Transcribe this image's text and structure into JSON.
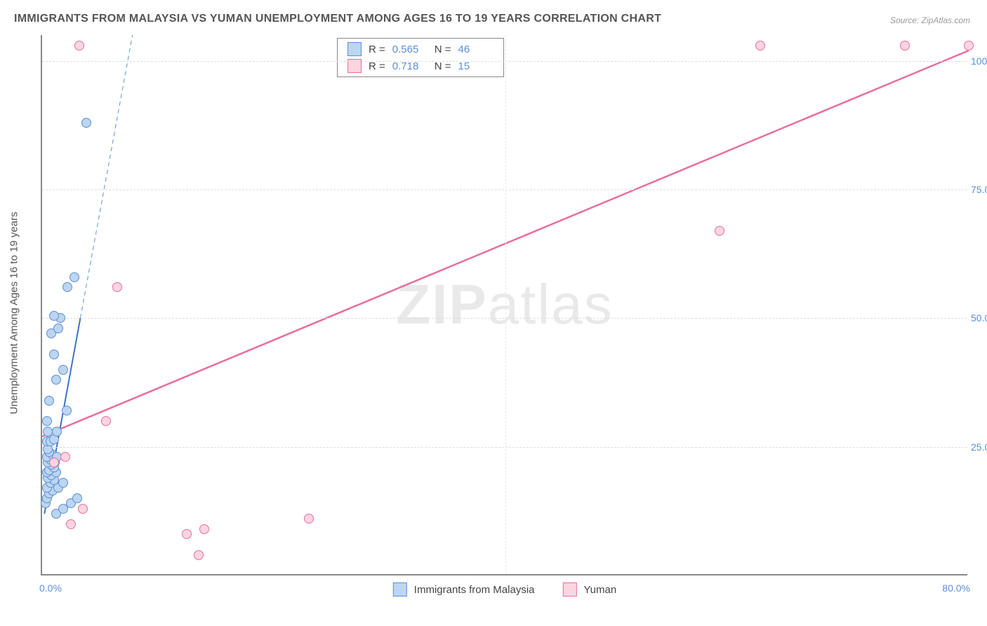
{
  "title": "IMMIGRANTS FROM MALAYSIA VS YUMAN UNEMPLOYMENT AMONG AGES 16 TO 19 YEARS CORRELATION CHART",
  "source": "Source: ZipAtlas.com",
  "y_axis_label": "Unemployment Among Ages 16 to 19 years",
  "watermark_a": "ZIP",
  "watermark_b": "atlas",
  "chart": {
    "type": "scatter",
    "background_color": "#ffffff",
    "grid_color": "#dddddd",
    "axis_color": "#888888",
    "xlim": [
      0,
      80
    ],
    "ylim": [
      0,
      105
    ],
    "x_ticks": [
      0,
      40,
      80
    ],
    "x_tick_labels": [
      "0.0%",
      "",
      "80.0%"
    ],
    "y_ticks": [
      25,
      50,
      75,
      100
    ],
    "y_tick_labels": [
      "25.0%",
      "50.0%",
      "75.0%",
      "100.0%"
    ],
    "x_grid_positions": [
      40
    ],
    "point_radius": 7,
    "point_stroke_width": 1.5,
    "series": [
      {
        "id": "malaysia",
        "label": "Immigrants from Malaysia",
        "fill": "#bcd5f0",
        "stroke": "#5b8fd6",
        "R": "0.565",
        "N": "46",
        "trend": {
          "x1": 0.2,
          "y1": 12,
          "x2": 3.3,
          "y2": 50,
          "color": "#3f73c4",
          "width": 2
        },
        "trend_ext": {
          "x1": 3.3,
          "y1": 50,
          "x2": 7.8,
          "y2": 105,
          "color": "#5b8fd6",
          "dash": "6 5",
          "width": 1
        },
        "points": [
          [
            0.3,
            14
          ],
          [
            0.4,
            15
          ],
          [
            0.6,
            16
          ],
          [
            0.9,
            16.5
          ],
          [
            0.4,
            17
          ],
          [
            1.4,
            17
          ],
          [
            0.7,
            18
          ],
          [
            1.0,
            18.5
          ],
          [
            1.8,
            18
          ],
          [
            0.5,
            19
          ],
          [
            0.8,
            19.5
          ],
          [
            1.2,
            20
          ],
          [
            0.4,
            20
          ],
          [
            0.6,
            20.5
          ],
          [
            1.0,
            21
          ],
          [
            0.8,
            21.5
          ],
          [
            0.5,
            22
          ],
          [
            1.1,
            22
          ],
          [
            0.7,
            22.5
          ],
          [
            0.4,
            23
          ],
          [
            0.9,
            23.5
          ],
          [
            1.3,
            23
          ],
          [
            0.6,
            24
          ],
          [
            0.5,
            24.5
          ],
          [
            0.4,
            26
          ],
          [
            0.7,
            26
          ],
          [
            1.0,
            26.5
          ],
          [
            0.5,
            28
          ],
          [
            1.3,
            28
          ],
          [
            0.4,
            30
          ],
          [
            2.1,
            32
          ],
          [
            0.6,
            34
          ],
          [
            1.2,
            38
          ],
          [
            1.8,
            40
          ],
          [
            1.0,
            43
          ],
          [
            0.8,
            47
          ],
          [
            1.4,
            48
          ],
          [
            1.6,
            50
          ],
          [
            1.0,
            50.5
          ],
          [
            2.2,
            56
          ],
          [
            2.8,
            58
          ],
          [
            3.8,
            88
          ],
          [
            1.2,
            12
          ],
          [
            2.5,
            14
          ],
          [
            1.8,
            13
          ],
          [
            3.0,
            15
          ]
        ]
      },
      {
        "id": "yuman",
        "label": "Yuman",
        "fill": "#fbd5e0",
        "stroke": "#e86e9a",
        "R": "0.718",
        "N": "15",
        "trend": {
          "x1": 0,
          "y1": 27,
          "x2": 80,
          "y2": 102,
          "color": "#e86e9a",
          "width": 2.5
        },
        "points": [
          [
            1.0,
            22
          ],
          [
            2.0,
            23
          ],
          [
            2.5,
            10
          ],
          [
            3.5,
            13
          ],
          [
            5.5,
            30
          ],
          [
            6.5,
            56
          ],
          [
            12.5,
            8
          ],
          [
            13.5,
            4
          ],
          [
            14.0,
            9
          ],
          [
            23.0,
            11
          ],
          [
            3.2,
            103
          ],
          [
            58.5,
            67
          ],
          [
            62.0,
            103
          ],
          [
            74.5,
            103
          ],
          [
            80.0,
            103
          ]
        ]
      }
    ]
  },
  "legend_top": {
    "r_label": "R =",
    "n_label": "N ="
  }
}
